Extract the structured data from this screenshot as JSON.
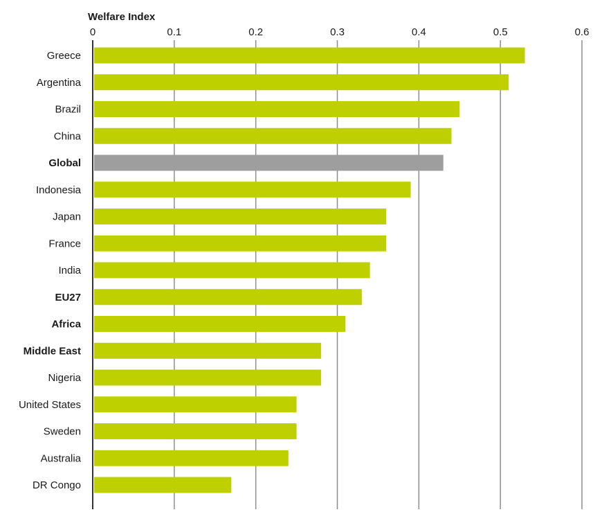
{
  "chart_data": {
    "type": "bar",
    "orientation": "horizontal",
    "xlabel": "Welfare Index",
    "xlim": [
      0,
      0.6
    ],
    "ticks": [
      "0",
      "0.1",
      "0.2",
      "0.3",
      "0.4",
      "0.5",
      "0.6"
    ],
    "grid": true,
    "categories": [
      "Greece",
      "Argentina",
      "Brazil",
      "China",
      "Global",
      "Indonesia",
      "Japan",
      "France",
      "India",
      "EU27",
      "Africa",
      "Middle East",
      "Nigeria",
      "United States",
      "Sweden",
      "Australia",
      "DR Congo"
    ],
    "values": [
      0.53,
      0.51,
      0.45,
      0.44,
      0.43,
      0.39,
      0.36,
      0.36,
      0.34,
      0.33,
      0.31,
      0.28,
      0.28,
      0.25,
      0.25,
      0.24,
      0.17
    ],
    "bold_categories": [
      "Global",
      "EU27",
      "Africa",
      "Middle East"
    ],
    "highlight_category": "Global",
    "colors": {
      "bar": "#bed000",
      "highlight": "#9e9e9e",
      "grid": "#8c8c8c",
      "axis": "#333333"
    }
  }
}
